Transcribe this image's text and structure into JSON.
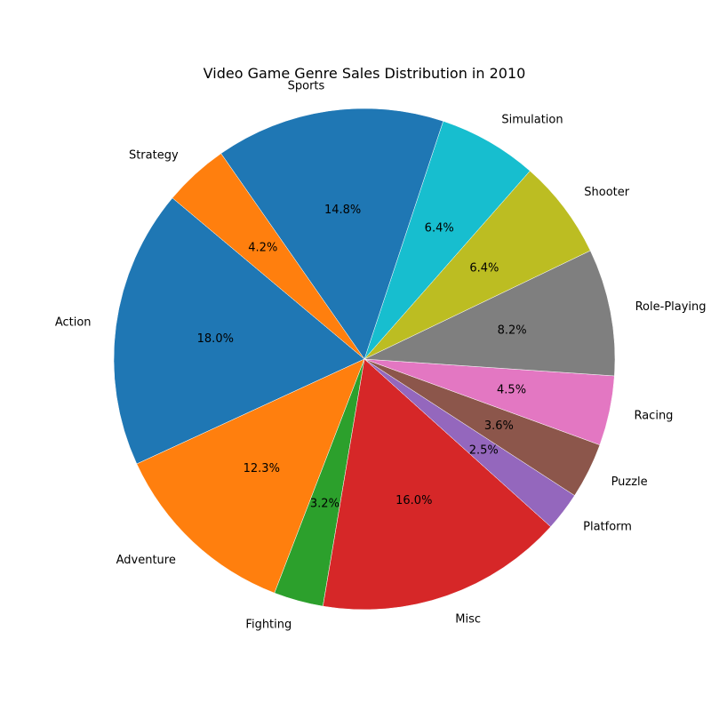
{
  "chart_data": {
    "type": "pie",
    "title": "Video Game Genre Sales Distribution in 2010",
    "start_angle_deg": 140,
    "direction": "counterclockwise",
    "slices": [
      {
        "label": "Action",
        "value": 18.0,
        "pct_label": "18.0%",
        "color": "#1f77b4"
      },
      {
        "label": "Adventure",
        "value": 12.3,
        "pct_label": "12.3%",
        "color": "#ff7f0e"
      },
      {
        "label": "Fighting",
        "value": 3.2,
        "pct_label": "3.2%",
        "color": "#2ca02c"
      },
      {
        "label": "Misc",
        "value": 16.0,
        "pct_label": "16.0%",
        "color": "#d62728"
      },
      {
        "label": "Platform",
        "value": 2.5,
        "pct_label": "2.5%",
        "color": "#9467bd"
      },
      {
        "label": "Puzzle",
        "value": 3.6,
        "pct_label": "3.6%",
        "color": "#8c564b"
      },
      {
        "label": "Racing",
        "value": 4.5,
        "pct_label": "4.5%",
        "color": "#e377c2"
      },
      {
        "label": "Role-Playing",
        "value": 8.2,
        "pct_label": "8.2%",
        "color": "#7f7f7f"
      },
      {
        "label": "Shooter",
        "value": 6.4,
        "pct_label": "6.4%",
        "color": "#bcbd22"
      },
      {
        "label": "Simulation",
        "value": 6.4,
        "pct_label": "6.4%",
        "color": "#17becf"
      },
      {
        "label": "Sports",
        "value": 14.8,
        "pct_label": "14.8%",
        "color": "#1f77b4"
      },
      {
        "label": "Strategy",
        "value": 4.2,
        "pct_label": "4.2%",
        "color": "#ff7f0e"
      }
    ]
  }
}
